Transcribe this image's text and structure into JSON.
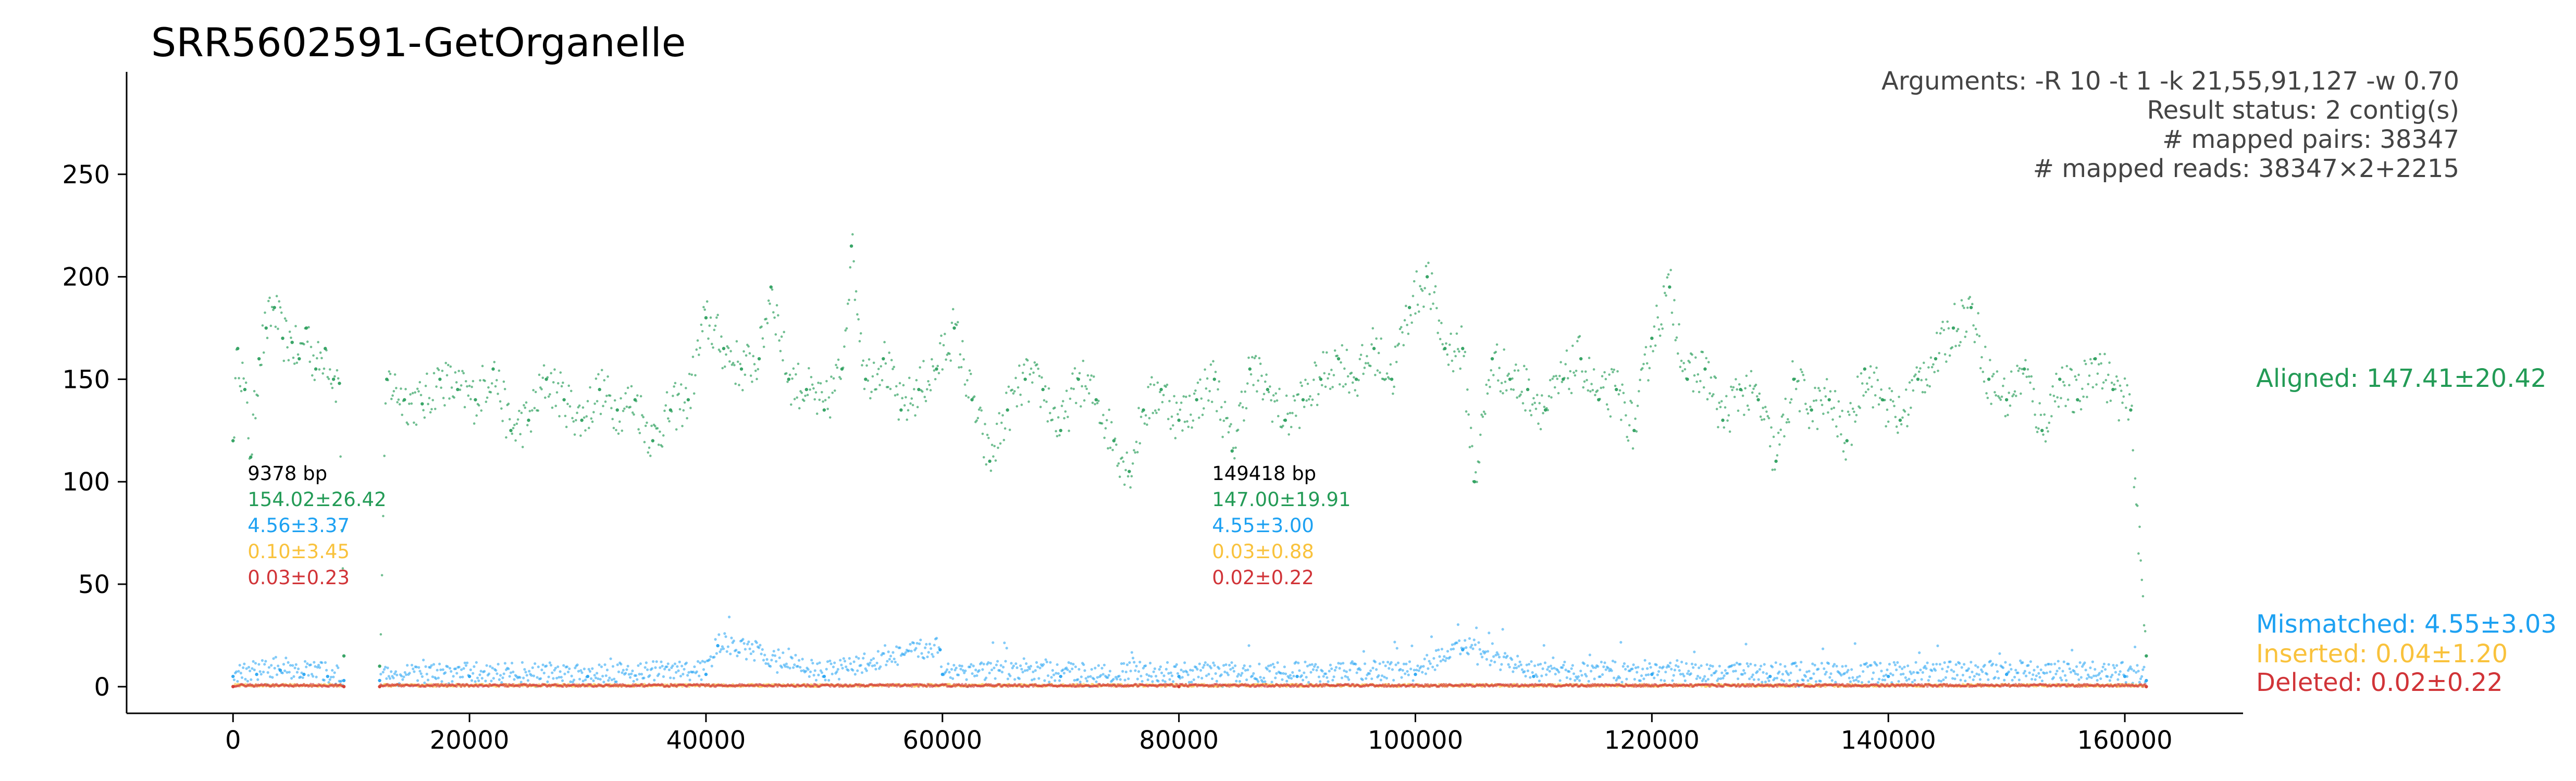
{
  "colors": {
    "aligned": "#239b56",
    "mismatched": "#1da1f2",
    "inserted": "#f9c23c",
    "deleted": "#d13438",
    "axis": "#000000",
    "info": "#444444"
  },
  "chart_data": {
    "type": "scatter",
    "title": "SRR5602591-GetOrganelle",
    "xlabel": "",
    "ylabel": "",
    "xlim": [
      -9000,
      170000
    ],
    "ylim": [
      -13,
      300
    ],
    "x_ticks": [
      0,
      20000,
      40000,
      60000,
      80000,
      100000,
      120000,
      140000,
      160000
    ],
    "y_ticks": [
      0,
      50,
      100,
      150,
      200,
      250
    ],
    "info_lines": [
      "Arguments: -R 10 -t 1 -k 21,55,91,127 -w 0.70",
      "Result status: 2 contig(s)",
      "# mapped pairs: 38347",
      "# mapped reads: 38347×2+2215"
    ],
    "legend": [
      {
        "key": "aligned",
        "label": "Aligned: 147.41±20.42"
      },
      {
        "key": "mismatched",
        "label": "Mismatched: 4.55±3.03"
      },
      {
        "key": "inserted",
        "label": "Inserted: 0.04±1.20"
      },
      {
        "key": "deleted",
        "label": "Deleted: 0.02±0.22"
      }
    ],
    "contigs": [
      {
        "start": 0,
        "end": 9378,
        "length_label": "9378 bp",
        "aligned": "154.02±26.42",
        "mismatched": "4.56±3.37",
        "inserted": "0.10±3.45",
        "deleted": "0.03±0.23"
      },
      {
        "start": 12400,
        "end": 161818,
        "length_label": "149418 bp",
        "aligned": "147.00±19.91",
        "mismatched": "4.55±3.00",
        "inserted": "0.03±0.88",
        "deleted": "0.02±0.22"
      }
    ],
    "series": [
      {
        "name": "Aligned",
        "color_key": "aligned",
        "x": [
          0,
          400,
          1000,
          1500,
          2200,
          2800,
          3500,
          4200,
          5000,
          5600,
          6200,
          7000,
          7800,
          8500,
          9000,
          9378,
          12400,
          13000,
          14500,
          16000,
          17500,
          19000,
          20500,
          22000,
          23500,
          25000,
          26500,
          28000,
          29500,
          31000,
          32500,
          34000,
          35500,
          37000,
          38500,
          40000,
          41500,
          43000,
          44500,
          45500,
          47000,
          48500,
          50000,
          51500,
          52300,
          53500,
          55000,
          56500,
          58000,
          59500,
          61000,
          62500,
          64000,
          65500,
          67000,
          68500,
          70000,
          71500,
          73000,
          74500,
          75800,
          77000,
          78500,
          80000,
          81500,
          83000,
          84500,
          86000,
          87500,
          89000,
          90500,
          92000,
          93500,
          95000,
          96500,
          98000,
          99500,
          101000,
          102500,
          104000,
          105000,
          106500,
          108000,
          109500,
          111000,
          112500,
          114000,
          115500,
          117000,
          118500,
          120000,
          121500,
          123000,
          124500,
          126000,
          127500,
          129000,
          130500,
          132000,
          133500,
          135000,
          136500,
          138000,
          139500,
          141000,
          142500,
          144000,
          145500,
          147000,
          148500,
          150000,
          151500,
          153000,
          154500,
          156000,
          157500,
          159000,
          160500,
          161818
        ],
        "y": [
          120,
          165,
          145,
          112,
          160,
          175,
          185,
          170,
          168,
          160,
          175,
          155,
          165,
          150,
          148,
          15,
          10,
          150,
          140,
          138,
          150,
          145,
          140,
          155,
          125,
          130,
          150,
          140,
          130,
          145,
          135,
          140,
          120,
          135,
          140,
          180,
          165,
          155,
          160,
          195,
          150,
          145,
          135,
          155,
          215,
          150,
          160,
          135,
          145,
          155,
          175,
          140,
          110,
          135,
          150,
          145,
          125,
          150,
          140,
          120,
          105,
          135,
          145,
          130,
          140,
          150,
          115,
          155,
          145,
          130,
          140,
          150,
          160,
          150,
          165,
          150,
          185,
          200,
          165,
          165,
          100,
          160,
          150,
          145,
          135,
          150,
          160,
          140,
          145,
          125,
          170,
          195,
          150,
          155,
          130,
          145,
          140,
          110,
          150,
          135,
          140,
          120,
          155,
          140,
          130,
          150,
          160,
          175,
          185,
          150,
          140,
          155,
          125,
          150,
          140,
          160,
          145,
          135,
          15
        ]
      },
      {
        "name": "Mismatched",
        "color_key": "mismatched",
        "x": [
          0,
          2000,
          4000,
          6000,
          8000,
          9378,
          12400,
          20000,
          30000,
          40000,
          41000,
          50000,
          59800,
          60000,
          70000,
          80000,
          90000,
          100000,
          104000,
          110000,
          120000,
          130000,
          140000,
          150000,
          160000,
          161818
        ],
        "y": [
          5,
          6,
          8,
          6,
          5,
          3,
          3,
          5,
          5,
          6,
          20,
          5,
          18,
          6,
          5,
          5,
          5,
          6,
          18,
          5,
          6,
          5,
          5,
          6,
          5,
          3
        ]
      },
      {
        "name": "Inserted",
        "color_key": "inserted",
        "x": [
          0,
          9378,
          12400,
          80000,
          161818
        ],
        "y": [
          0.1,
          0.1,
          0.03,
          0.03,
          0.03
        ]
      },
      {
        "name": "Deleted",
        "color_key": "deleted",
        "x": [
          0,
          9378,
          12400,
          80000,
          161818
        ],
        "y": [
          0.03,
          0.03,
          0.02,
          0.02,
          0.02
        ]
      }
    ]
  }
}
